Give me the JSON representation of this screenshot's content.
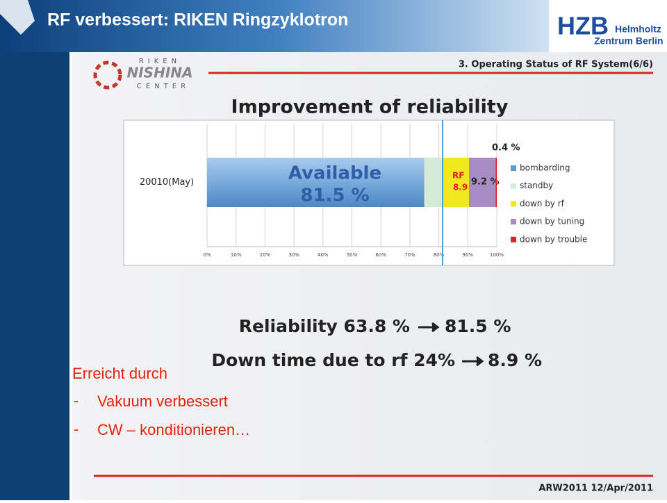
{
  "header": {
    "title": "RF verbessert: RIKEN Ringzyklotron",
    "logo": {
      "mark": "HZB",
      "line1": "Helmholtz",
      "line2": "Zentrum Berlin"
    }
  },
  "slide": {
    "logo": {
      "top": "RIKEN",
      "main": "NISHINA",
      "bottom": "CENTER"
    },
    "section": "3. Operating Status of RF System(6/6)",
    "reliability": {
      "label": "Reliability 63.8 %",
      "result": "81.5 %"
    },
    "downtime": {
      "label": "Down time due to rf  24%",
      "result": "8.9 %"
    },
    "footer": "ARW2011 12/Apr/2011"
  },
  "notes": {
    "heading": "Erreicht durch",
    "bullet": "-",
    "items": [
      "Vakuum verbessert",
      "CW – konditionieren…"
    ]
  },
  "chart_data": {
    "type": "stacked-bar-horizontal",
    "title": "Improvement of reliability",
    "categories": [
      "20010(May)"
    ],
    "series": [
      {
        "name": "bombarding",
        "color": "#5b9bd5",
        "values": [
          75
        ]
      },
      {
        "name": "standby",
        "color": "#d6ebd6",
        "values": [
          6.5
        ]
      },
      {
        "name": "down by rf",
        "color": "#f2e81e",
        "values": [
          8.9
        ],
        "value_labels": [
          "8.9 %"
        ]
      },
      {
        "name": "down by tuning",
        "color": "#a88cc6",
        "values": [
          9.2
        ],
        "value_labels": [
          "9.2 %"
        ]
      },
      {
        "name": "down by trouble",
        "color": "#e02020",
        "values": [
          0.4
        ],
        "value_labels": [
          "0.4 %"
        ]
      }
    ],
    "annotations": [
      "Available",
      "81.5 %",
      "RF"
    ],
    "xlim": [
      0,
      100
    ],
    "xticks": [
      {
        "value": 0,
        "label": "0%"
      },
      {
        "value": 10,
        "label": "10%"
      },
      {
        "value": 20,
        "label": "20%"
      },
      {
        "value": 30,
        "label": "30%"
      },
      {
        "value": 40,
        "label": "40%"
      },
      {
        "value": 50,
        "label": "50%"
      },
      {
        "value": 60,
        "label": "60%"
      },
      {
        "value": 70,
        "label": "70%"
      },
      {
        "value": 80,
        "label": "80%"
      },
      {
        "value": 90,
        "label": "90%"
      },
      {
        "value": 100,
        "label": "100%"
      }
    ],
    "grid": true,
    "legend": "right"
  }
}
